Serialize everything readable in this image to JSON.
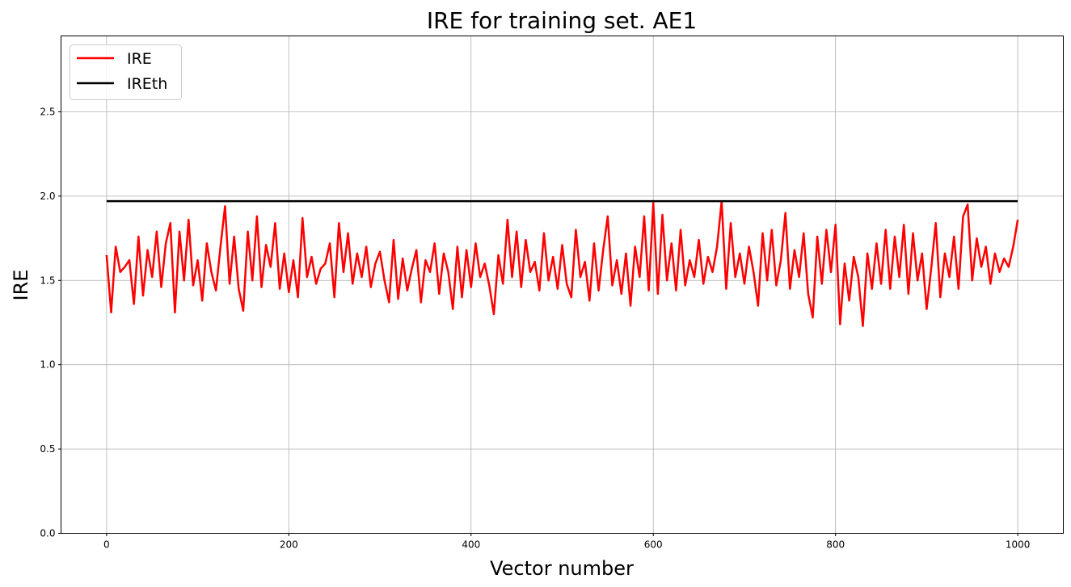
{
  "chart_data": {
    "type": "line",
    "title": "IRE for training set. AE1",
    "xlabel": "Vector number",
    "ylabel": "IRE",
    "xlim": [
      -50,
      1050
    ],
    "ylim": [
      0,
      2.95
    ],
    "xticks": [
      0,
      200,
      400,
      600,
      800,
      1000
    ],
    "yticks": [
      0.0,
      0.5,
      1.0,
      1.5,
      2.0,
      2.5
    ],
    "xtick_labels": [
      "0",
      "200",
      "400",
      "600",
      "800",
      "1000"
    ],
    "ytick_labels": [
      "0.0",
      "0.5",
      "1.0",
      "1.5",
      "2.0",
      "2.5"
    ],
    "grid": true,
    "legend_position": "top-left",
    "series": [
      {
        "name": "IRE",
        "color": "#ff0000",
        "x_start": 0,
        "x_end": 1000,
        "values": [
          1.65,
          1.31,
          1.7,
          1.55,
          1.58,
          1.62,
          1.36,
          1.76,
          1.41,
          1.68,
          1.52,
          1.79,
          1.46,
          1.72,
          1.84,
          1.31,
          1.79,
          1.5,
          1.86,
          1.47,
          1.62,
          1.38,
          1.72,
          1.55,
          1.44,
          1.7,
          1.94,
          1.48,
          1.76,
          1.45,
          1.32,
          1.79,
          1.5,
          1.88,
          1.46,
          1.71,
          1.58,
          1.84,
          1.45,
          1.66,
          1.43,
          1.62,
          1.4,
          1.87,
          1.52,
          1.64,
          1.48,
          1.57,
          1.6,
          1.72,
          1.4,
          1.84,
          1.55,
          1.78,
          1.48,
          1.66,
          1.52,
          1.7,
          1.46,
          1.6,
          1.67,
          1.5,
          1.37,
          1.74,
          1.39,
          1.63,
          1.44,
          1.57,
          1.68,
          1.37,
          1.62,
          1.55,
          1.72,
          1.42,
          1.66,
          1.55,
          1.33,
          1.7,
          1.4,
          1.68,
          1.46,
          1.72,
          1.52,
          1.6,
          1.47,
          1.3,
          1.65,
          1.48,
          1.86,
          1.52,
          1.79,
          1.46,
          1.74,
          1.55,
          1.61,
          1.44,
          1.78,
          1.5,
          1.64,
          1.45,
          1.71,
          1.48,
          1.4,
          1.8,
          1.52,
          1.61,
          1.38,
          1.72,
          1.44,
          1.68,
          1.88,
          1.47,
          1.62,
          1.42,
          1.66,
          1.35,
          1.7,
          1.52,
          1.88,
          1.44,
          1.96,
          1.42,
          1.89,
          1.5,
          1.72,
          1.44,
          1.8,
          1.47,
          1.62,
          1.52,
          1.74,
          1.48,
          1.64,
          1.55,
          1.7,
          1.97,
          1.45,
          1.84,
          1.52,
          1.66,
          1.48,
          1.7,
          1.55,
          1.35,
          1.78,
          1.5,
          1.8,
          1.47,
          1.62,
          1.9,
          1.45,
          1.68,
          1.52,
          1.78,
          1.42,
          1.28,
          1.76,
          1.48,
          1.8,
          1.55,
          1.83,
          1.24,
          1.6,
          1.38,
          1.64,
          1.52,
          1.23,
          1.66,
          1.45,
          1.72,
          1.48,
          1.8,
          1.45,
          1.76,
          1.52,
          1.83,
          1.42,
          1.78,
          1.5,
          1.66,
          1.33,
          1.57,
          1.84,
          1.4,
          1.66,
          1.52,
          1.76,
          1.45,
          1.88,
          1.95,
          1.5,
          1.75,
          1.58,
          1.7,
          1.48,
          1.66,
          1.55,
          1.63,
          1.58,
          1.7,
          1.86
        ]
      },
      {
        "name": "IREth",
        "color": "#000000",
        "x_start": 0,
        "x_end": 1000,
        "values": [
          1.97,
          1.97
        ]
      }
    ]
  }
}
